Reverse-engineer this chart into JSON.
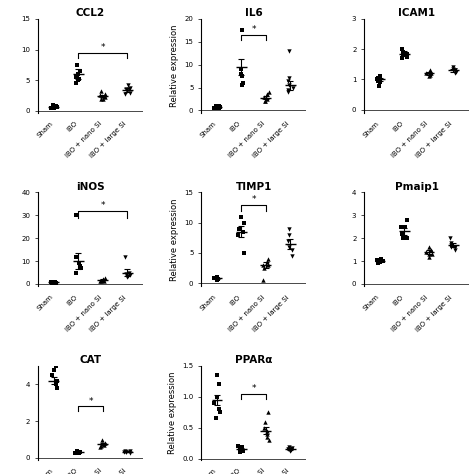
{
  "panels": [
    {
      "title": "CCL2",
      "ylabel": "",
      "ylim": [
        -0.3,
        15
      ],
      "yticks": [
        0,
        5,
        10,
        15
      ],
      "yticklabels": [
        "0",
        "5",
        "10",
        "15"
      ],
      "data": [
        [
          0.5,
          0.8,
          1.0,
          0.6,
          0.7,
          0.5,
          0.4
        ],
        [
          5.5,
          7.5,
          6.0,
          5.2,
          6.5,
          5.0,
          4.5
        ],
        [
          2.0,
          2.8,
          3.2,
          2.5,
          2.2,
          2.6,
          1.9
        ],
        [
          3.0,
          3.5,
          4.2,
          3.8,
          2.8,
          3.2,
          3.6
        ]
      ],
      "means": [
        0.65,
        6.0,
        2.45,
        3.4
      ],
      "sems": [
        0.08,
        0.85,
        0.22,
        0.28
      ],
      "sig_pairs": [
        [
          1,
          3
        ]
      ],
      "sig_y": [
        9.5
      ],
      "sig_bracket_drop": 0.8,
      "row": 0,
      "col": 0
    },
    {
      "title": "IL6",
      "ylabel": "Relative expression",
      "ylim": [
        -0.5,
        20
      ],
      "yticks": [
        0,
        5,
        10,
        15,
        20
      ],
      "yticklabels": [
        "0",
        "5",
        "10",
        "15",
        "20"
      ],
      "data": [
        [
          0.5,
          0.8,
          0.9,
          0.7,
          0.6,
          0.5,
          1.0
        ],
        [
          9.0,
          17.5,
          8.0,
          5.5,
          7.5,
          6.0
        ],
        [
          2.5,
          3.5,
          2.0,
          3.0,
          4.0,
          2.0
        ],
        [
          5.5,
          6.5,
          5.0,
          4.5,
          7.0,
          4.0,
          13.0
        ]
      ],
      "means": [
        0.7,
        9.5,
        2.8,
        5.5
      ],
      "sems": [
        0.08,
        1.8,
        0.35,
        1.0
      ],
      "sig_pairs": [
        [
          1,
          2
        ]
      ],
      "sig_y": [
        16.5
      ],
      "sig_bracket_drop": 1.2,
      "row": 0,
      "col": 1
    },
    {
      "title": "ICAM1",
      "ylabel": "",
      "ylim": [
        -0.1,
        3
      ],
      "yticks": [
        0,
        1,
        2,
        3
      ],
      "yticklabels": [
        "0",
        "1",
        "2",
        "3"
      ],
      "data": [
        [
          1.0,
          1.1,
          0.9,
          1.0,
          0.95,
          1.05,
          0.8
        ],
        [
          1.8,
          2.0,
          1.9,
          1.7,
          1.85,
          1.75
        ],
        [
          1.2,
          1.3,
          1.1,
          1.2,
          1.15,
          1.25
        ],
        [
          1.3,
          1.4,
          1.2,
          1.3,
          1.35,
          1.25
        ]
      ],
      "means": [
        1.0,
        1.85,
        1.2,
        1.3
      ],
      "sems": [
        0.04,
        0.08,
        0.05,
        0.05
      ],
      "sig_pairs": [],
      "sig_y": [],
      "sig_bracket_drop": 0.1,
      "row": 0,
      "col": 2
    },
    {
      "title": "iNOS",
      "ylabel": "",
      "ylim": [
        -1.0,
        40
      ],
      "yticks": [
        0,
        10,
        20,
        30,
        40
      ],
      "yticklabels": [
        "0",
        "10",
        "20",
        "30",
        "40"
      ],
      "data": [
        [
          0.5,
          0.8,
          1.0,
          0.7,
          0.6,
          0.5
        ],
        [
          12.0,
          8.0,
          5.0,
          30.0,
          9.0,
          7.0
        ],
        [
          1.5,
          2.0,
          2.5,
          1.8,
          1.2,
          1.5
        ],
        [
          4.0,
          5.0,
          3.0,
          12.0,
          4.5,
          3.5
        ]
      ],
      "means": [
        0.7,
        10.0,
        1.8,
        5.0
      ],
      "sems": [
        0.1,
        3.5,
        0.25,
        1.5
      ],
      "sig_pairs": [
        [
          1,
          3
        ]
      ],
      "sig_y": [
        32.0
      ],
      "sig_bracket_drop": 3.0,
      "row": 1,
      "col": 0
    },
    {
      "title": "TIMP1",
      "ylabel": "Relative expression",
      "ylim": [
        -0.5,
        15
      ],
      "yticks": [
        0,
        5,
        10,
        15
      ],
      "yticklabels": [
        "0",
        "5",
        "10",
        "15"
      ],
      "data": [
        [
          0.8,
          0.9,
          1.0,
          0.7,
          0.8,
          0.6
        ],
        [
          8.0,
          11.0,
          10.0,
          5.0,
          8.5,
          9.0
        ],
        [
          3.0,
          4.0,
          2.5,
          3.5,
          3.0,
          0.5
        ],
        [
          6.0,
          7.0,
          5.5,
          4.5,
          9.0,
          8.0
        ]
      ],
      "means": [
        0.8,
        8.5,
        3.0,
        6.5
      ],
      "sems": [
        0.06,
        0.9,
        0.55,
        0.8
      ],
      "sig_pairs": [
        [
          1,
          2
        ]
      ],
      "sig_y": [
        13.0
      ],
      "sig_bracket_drop": 1.0,
      "row": 1,
      "col": 1
    },
    {
      "title": "Pmaip1",
      "ylabel": "",
      "ylim": [
        -0.1,
        4
      ],
      "yticks": [
        0,
        1,
        2,
        3,
        4
      ],
      "yticklabels": [
        "0",
        "1",
        "2",
        "3",
        "4"
      ],
      "data": [
        [
          1.0,
          1.1,
          0.9,
          0.95,
          1.05,
          1.0
        ],
        [
          2.0,
          2.5,
          2.8,
          2.2,
          2.0,
          2.5
        ],
        [
          1.3,
          1.5,
          1.4,
          1.2,
          1.6,
          1.3
        ],
        [
          1.5,
          1.8,
          1.6,
          2.0,
          1.7,
          1.6
        ]
      ],
      "means": [
        1.0,
        2.3,
        1.4,
        1.7
      ],
      "sems": [
        0.04,
        0.15,
        0.08,
        0.1
      ],
      "sig_pairs": [],
      "sig_y": [],
      "sig_bracket_drop": 0.1,
      "row": 1,
      "col": 2
    },
    {
      "title": "CAT",
      "ylabel": "",
      "ylim": [
        -0.1,
        5
      ],
      "yticks": [
        0,
        2,
        4
      ],
      "yticklabels": [
        "0",
        "2",
        "4"
      ],
      "data": [
        [
          4.0,
          4.5,
          5.0,
          4.2,
          3.8,
          4.8
        ],
        [
          0.28,
          0.32,
          0.35,
          0.3,
          0.25,
          0.38
        ],
        [
          0.6,
          0.8,
          1.0,
          0.7,
          0.65,
          0.75
        ],
        [
          0.3,
          0.35,
          0.28,
          0.4,
          0.32,
          0.38
        ]
      ],
      "means": [
        4.2,
        0.31,
        0.75,
        0.34
      ],
      "sems": [
        0.18,
        0.025,
        0.065,
        0.025
      ],
      "sig_pairs": [
        [
          1,
          2
        ]
      ],
      "sig_y": [
        2.8
      ],
      "sig_bracket_drop": 0.25,
      "row": 2,
      "col": 0
    },
    {
      "title": "PPARα",
      "ylabel": "Relative expression",
      "ylim": [
        -0.02,
        1.5
      ],
      "yticks": [
        0.0,
        0.5,
        1.0,
        1.5
      ],
      "yticklabels": [
        "0.0",
        "0.5",
        "1.0",
        "1.5"
      ],
      "data": [
        [
          1.0,
          0.8,
          1.2,
          0.9,
          0.65,
          0.75,
          1.35
        ],
        [
          0.15,
          0.18,
          0.1,
          0.12,
          0.14,
          0.17,
          0.2
        ],
        [
          0.4,
          0.5,
          0.3,
          0.6,
          0.45,
          0.35,
          0.75
        ],
        [
          0.15,
          0.18,
          0.12,
          0.14,
          0.16,
          0.17
        ]
      ],
      "means": [
        0.95,
        0.155,
        0.45,
        0.155
      ],
      "sems": [
        0.08,
        0.012,
        0.055,
        0.01
      ],
      "sig_pairs": [
        [
          1,
          2
        ]
      ],
      "sig_y": [
        1.05
      ],
      "sig_bracket_drop": 0.08,
      "row": 2,
      "col": 1
    }
  ],
  "groups": [
    "Sham",
    "IBO",
    "IBO + nano Si",
    "IBO + large Si"
  ],
  "marker_size": 10,
  "marker_color": "black",
  "error_color": "black",
  "line_color": "black",
  "sig_color": "black",
  "title_font_size": 7.5,
  "ylabel_font_size": 6,
  "tick_font_size": 5,
  "xlabel_font_size": 5
}
